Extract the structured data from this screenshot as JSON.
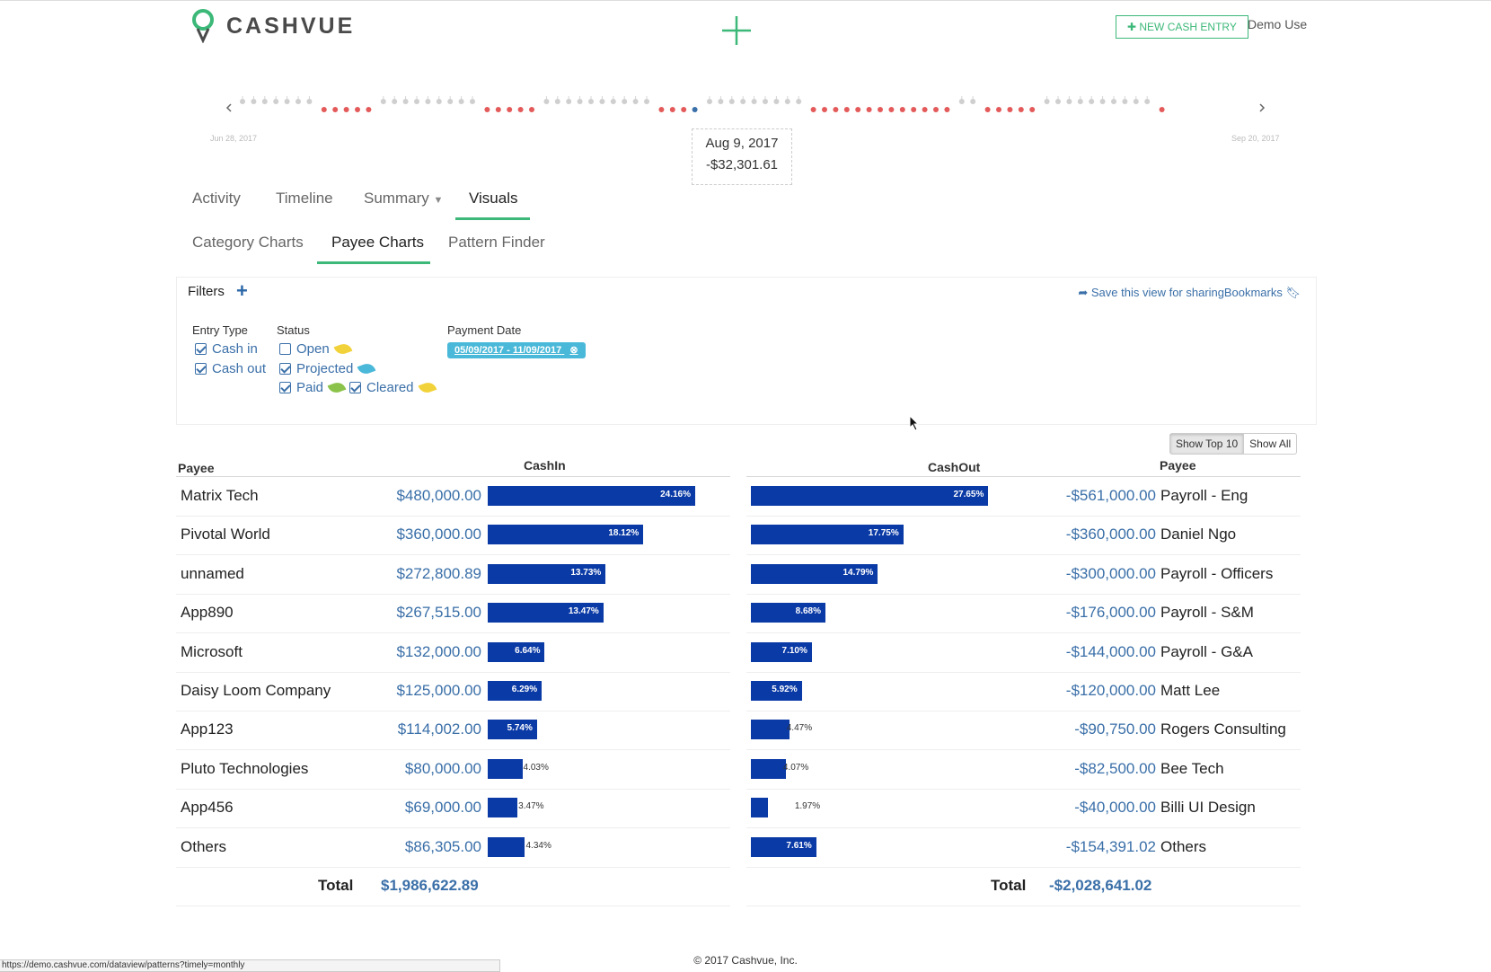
{
  "header": {
    "logo_text": "CASHVUE",
    "new_entry_label": "✚ NEW CASH ENTRY",
    "user_name": "Demo Use"
  },
  "timeline": {
    "start_date": "Jun 28, 2017",
    "end_date": "Sep 20, 2017",
    "tooltip_date": "Aug 9, 2017",
    "tooltip_value": "-$32,301.61"
  },
  "nav": {
    "tabs": [
      {
        "label": "Activity"
      },
      {
        "label": "Timeline"
      },
      {
        "label": "Summary"
      },
      {
        "label": "Visuals"
      }
    ],
    "subtabs": [
      {
        "label": "Category Charts"
      },
      {
        "label": "Payee Charts"
      },
      {
        "label": "Pattern Finder"
      }
    ]
  },
  "filters": {
    "title": "Filters",
    "share_label": "Save this view for sharing",
    "bookmarks_label": "Bookmarks",
    "entry_type_label": "Entry Type",
    "entry_types": [
      "Cash in",
      "Cash out"
    ],
    "status_label": "Status",
    "statuses": [
      "Open",
      "Projected",
      "Paid",
      "Cleared"
    ],
    "payment_date_label": "Payment Date",
    "payment_date_value": "05/09/2017 - 11/09/2017",
    "colors": {
      "open": "#f2d23a",
      "projected": "#4ab8d8",
      "paid": "#8bc34a",
      "cleared": "#f2d23a"
    }
  },
  "toggle": {
    "top10": "Show Top 10",
    "all": "Show All"
  },
  "cash_in": {
    "payee_header": "Payee",
    "amount_header": "CashIn",
    "total_label": "Total",
    "total": "$1,986,622.89",
    "rows": [
      {
        "payee": "Matrix Tech",
        "amount": "$480,000.00",
        "pct": "24.16%",
        "share": 24.16
      },
      {
        "payee": "Pivotal World",
        "amount": "$360,000.00",
        "pct": "18.12%",
        "share": 18.12
      },
      {
        "payee": "unnamed",
        "amount": "$272,800.89",
        "pct": "13.73%",
        "share": 13.73
      },
      {
        "payee": "App890",
        "amount": "$267,515.00",
        "pct": "13.47%",
        "share": 13.47
      },
      {
        "payee": "Microsoft",
        "amount": "$132,000.00",
        "pct": "6.64%",
        "share": 6.64
      },
      {
        "payee": "Daisy Loom Company",
        "amount": "$125,000.00",
        "pct": "6.29%",
        "share": 6.29
      },
      {
        "payee": "App123",
        "amount": "$114,002.00",
        "pct": "5.74%",
        "share": 5.74
      },
      {
        "payee": "Pluto Technologies",
        "amount": "$80,000.00",
        "pct": "4.03%",
        "share": 4.03
      },
      {
        "payee": "App456",
        "amount": "$69,000.00",
        "pct": "3.47%",
        "share": 3.47
      },
      {
        "payee": "Others",
        "amount": "$86,305.00",
        "pct": "4.34%",
        "share": 4.34
      }
    ]
  },
  "cash_out": {
    "payee_header": "Payee",
    "amount_header": "CashOut",
    "total_label": "Total",
    "total": "-$2,028,641.02",
    "rows": [
      {
        "payee": "Payroll - Eng",
        "amount": "-$561,000.00",
        "pct": "27.65%",
        "share": 27.65
      },
      {
        "payee": "Daniel Ngo",
        "amount": "-$360,000.00",
        "pct": "17.75%",
        "share": 17.75
      },
      {
        "payee": "Payroll - Officers",
        "amount": "-$300,000.00",
        "pct": "14.79%",
        "share": 14.79
      },
      {
        "payee": "Payroll - S&M",
        "amount": "-$176,000.00",
        "pct": "8.68%",
        "share": 8.68
      },
      {
        "payee": "Payroll - G&A",
        "amount": "-$144,000.00",
        "pct": "7.10%",
        "share": 7.1
      },
      {
        "payee": "Matt Lee",
        "amount": "-$120,000.00",
        "pct": "5.92%",
        "share": 5.92
      },
      {
        "payee": "Rogers Consulting",
        "amount": "-$90,750.00",
        "pct": "4.47%",
        "share": 4.47
      },
      {
        "payee": "Bee Tech",
        "amount": "-$82,500.00",
        "pct": "4.07%",
        "share": 4.07
      },
      {
        "payee": "Billi UI Design",
        "amount": "-$40,000.00",
        "pct": "1.97%",
        "share": 1.97
      },
      {
        "payee": "Others",
        "amount": "-$154,391.02",
        "pct": "7.61%",
        "share": 7.61
      }
    ]
  },
  "footer": {
    "copyright": "© 2017 Cashvue, Inc.",
    "status_url": "https://demo.cashvue.com/dataview/patterns?timely=monthly"
  },
  "accent_color": "#3cb878",
  "bar_color": "#0a3aa6"
}
